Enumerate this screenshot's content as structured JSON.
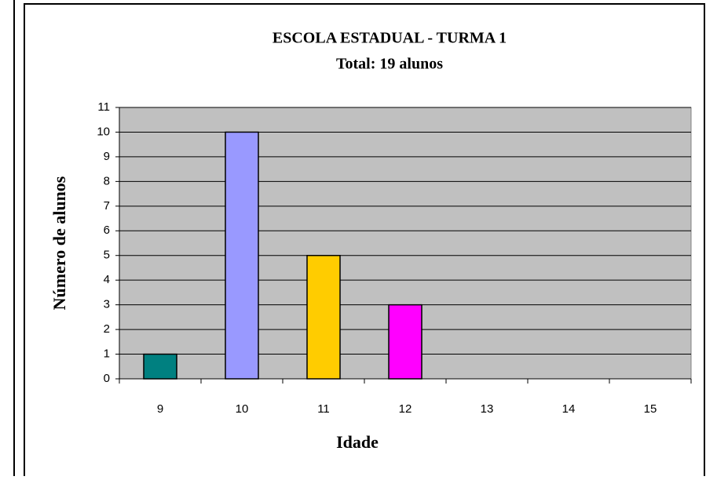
{
  "chart_data": {
    "type": "bar",
    "title": "ESCOLA ESTADUAL - TURMA 1",
    "subtitle": "Total: 19 alunos",
    "x_label": "Idade",
    "y_label": "Número de alunos",
    "categories": [
      "9",
      "10",
      "11",
      "12",
      "13",
      "14",
      "15"
    ],
    "values": [
      1,
      10,
      5,
      3,
      null,
      null,
      null
    ],
    "colors": [
      "#008080",
      "#9999ff",
      "#ffcc00",
      "#ff00ff",
      null,
      null,
      null
    ],
    "ylim": [
      0,
      11
    ],
    "yticks": [
      0,
      1,
      2,
      3,
      4,
      5,
      6,
      7,
      8,
      9,
      10,
      11
    ],
    "grid": true
  }
}
